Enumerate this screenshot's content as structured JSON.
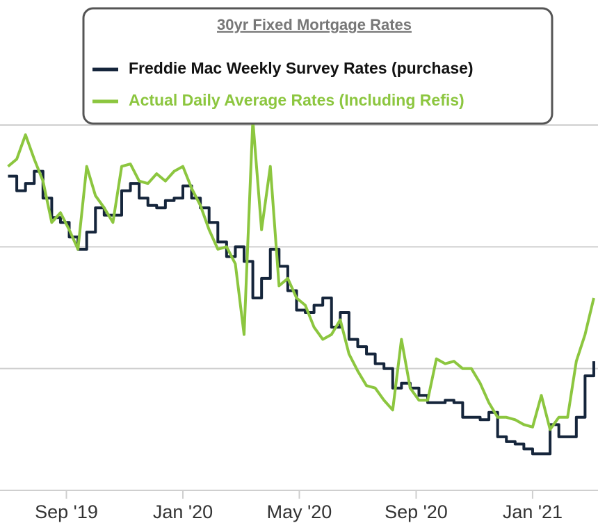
{
  "chart_data": {
    "type": "line",
    "legend_title": "30yr Fixed Mortgage Rates",
    "x": [
      2019.5,
      2019.525,
      2019.55,
      2019.575,
      2019.6,
      2019.625,
      2019.65,
      2019.675,
      2019.7,
      2019.725,
      2019.75,
      2019.775,
      2019.8,
      2019.825,
      2019.85,
      2019.875,
      2019.9,
      2019.925,
      2019.95,
      2019.975,
      2020,
      2020.025,
      2020.05,
      2020.075,
      2020.1,
      2020.125,
      2020.15,
      2020.175,
      2020.2,
      2020.225,
      2020.25,
      2020.275,
      2020.3,
      2020.325,
      2020.35,
      2020.375,
      2020.4,
      2020.425,
      2020.45,
      2020.475,
      2020.5,
      2020.525,
      2020.55,
      2020.575,
      2020.6,
      2020.625,
      2020.65,
      2020.675,
      2020.7,
      2020.725,
      2020.75,
      2020.775,
      2020.8,
      2020.825,
      2020.85,
      2020.875,
      2020.9,
      2020.925,
      2020.95,
      2020.975,
      2021,
      2021.025,
      2021.05,
      2021.075,
      2021.1,
      2021.125,
      2021.15,
      2021.175
    ],
    "series": [
      {
        "name": "Freddie Mac Weekly Survey Rates (purchase)",
        "color": "#15253b",
        "step": true,
        "values": [
          3.79,
          3.73,
          3.76,
          3.81,
          3.7,
          3.62,
          3.6,
          3.54,
          3.49,
          3.56,
          3.66,
          3.63,
          3.63,
          3.73,
          3.76,
          3.7,
          3.67,
          3.66,
          3.69,
          3.7,
          3.75,
          3.7,
          3.66,
          3.6,
          3.52,
          3.46,
          3.5,
          3.44,
          3.29,
          3.37,
          3.49,
          3.42,
          3.32,
          3.24,
          3.23,
          3.26,
          3.29,
          3.17,
          3.23,
          3.12,
          3.09,
          3.06,
          3.02,
          3.0,
          2.92,
          2.94,
          2.92,
          2.89,
          2.86,
          2.86,
          2.87,
          2.86,
          2.8,
          2.8,
          2.79,
          2.82,
          2.72,
          2.7,
          2.69,
          2.67,
          2.65,
          2.65,
          2.77,
          2.72,
          2.72,
          2.8,
          2.97,
          3.03
        ]
      },
      {
        "name": "Actual Daily Average Rates (Including Refis)",
        "color": "#8cc63f",
        "step": false,
        "values": [
          3.83,
          3.86,
          3.96,
          3.86,
          3.77,
          3.6,
          3.64,
          3.57,
          3.49,
          3.83,
          3.71,
          3.66,
          3.6,
          3.83,
          3.84,
          3.77,
          3.76,
          3.8,
          3.77,
          3.81,
          3.83,
          3.74,
          3.67,
          3.57,
          3.49,
          3.5,
          3.43,
          3.14,
          4.02,
          3.57,
          3.83,
          3.34,
          3.37,
          3.29,
          3.26,
          3.17,
          3.12,
          3.14,
          3.2,
          3.06,
          2.99,
          2.93,
          2.92,
          2.87,
          2.83,
          3.12,
          2.92,
          2.87,
          2.87,
          3.04,
          3.02,
          3.03,
          3.0,
          3.0,
          2.94,
          2.86,
          2.8,
          2.8,
          2.79,
          2.77,
          2.76,
          2.89,
          2.75,
          2.8,
          2.8,
          3.03,
          3.14,
          3.29
        ]
      }
    ],
    "xlim": [
      2019.493,
      2021.187
    ],
    "xticks": [
      {
        "value": 2019.667,
        "label": "Sep '19"
      },
      {
        "value": 2020,
        "label": "Jan '20"
      },
      {
        "value": 2020.333,
        "label": "May '20"
      },
      {
        "value": 2020.667,
        "label": "Sep '20"
      },
      {
        "value": 2021,
        "label": "Jan '21"
      }
    ],
    "ylim": [
      2.5,
      4.0
    ],
    "yticks": [
      3.0,
      3.5,
      4.0
    ],
    "grid": true,
    "legend": "top"
  }
}
